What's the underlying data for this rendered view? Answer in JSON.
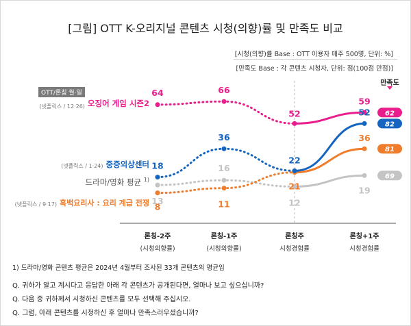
{
  "title": "[그림]  OTT K-오리지널 콘텐츠 시청(의향)률 및 만족도 비교",
  "base_view": "[시청(의향)률 Base : OTT 이용자 매주 500명, 단위: %]",
  "base_sat": "[만족도 Base : 각 콘텐츠 시청자, 단위: 점(100점 만점)]",
  "header_tag": "OTT/론칭 월·일",
  "satisfaction_header": "만족도",
  "footnote": "1) 드라마/영화 콘텐츠 평균은 2024년 4월부터 조사된 33개 콘텐츠의 평균임",
  "questions": [
    "Q. 귀하가 알고 계시다고 응답한 아래 각 콘텐츠가 공개된다면, 얼마나 보고 싶으십니까?",
    "Q. 다음 중 귀하께서 시청하신 콘텐츠를 모두 선택해 주십시오.",
    "Q. 그럼, 아래 콘텐츠를 시청하신 후 얼마나 만족스러우셨습니까?"
  ],
  "colors": {
    "pink": "#e91e8c",
    "blue": "#1565c0",
    "gray": "#c4c4c4",
    "orange": "#ef7d2c"
  },
  "chart_data": {
    "type": "line",
    "categories": [
      [
        "론칭-2주",
        "(시청의향률)"
      ],
      [
        "론칭-1주",
        "(시청의향률)"
      ],
      [
        "론칭주",
        "시청경험률"
      ],
      [
        "론칭+1주",
        "시청경험률"
      ]
    ],
    "ylim": [
      0,
      70
    ],
    "series": [
      {
        "name": "오징어 게임 시즌2",
        "source": "(넷플릭스 / 12·26)",
        "color": "#e91e8c",
        "values": [
          64,
          66,
          52,
          59
        ],
        "satisfaction": 62
      },
      {
        "name": "중증외상센터",
        "source": "(넷플릭스 / 1·24)",
        "color": "#1565c0",
        "values": [
          18,
          36,
          22,
          52
        ],
        "satisfaction": 82
      },
      {
        "name": "드라마/영화 평균",
        "name_sup": "1)",
        "source": "",
        "color": "#c4c4c4",
        "values": [
          13,
          16,
          12,
          19
        ],
        "satisfaction": 69
      },
      {
        "name": "흑백요리사 : 요리 계급 전쟁",
        "source": "(넷플릭스 / 9·17)",
        "color": "#ef7d2c",
        "values": [
          8,
          11,
          21,
          36
        ],
        "satisfaction": 81
      }
    ]
  }
}
